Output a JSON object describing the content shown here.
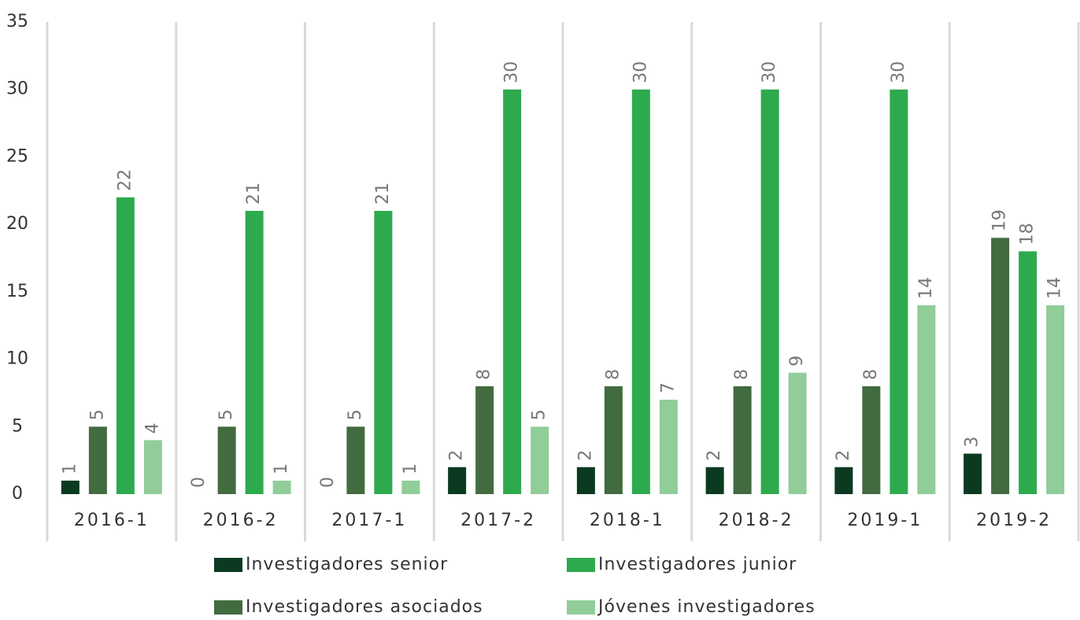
{
  "chart_data": {
    "type": "bar",
    "categories": [
      "2016-1",
      "2016-2",
      "2017-1",
      "2017-2",
      "2018-1",
      "2018-2",
      "2019-1",
      "2019-2"
    ],
    "series": [
      {
        "name": "Investigadores senior",
        "color": "#0b3a20",
        "values": [
          1,
          0,
          0,
          2,
          2,
          2,
          2,
          3
        ]
      },
      {
        "name": "Investigadores asociados",
        "color": "#426b3f",
        "values": [
          5,
          5,
          5,
          8,
          8,
          8,
          8,
          19
        ]
      },
      {
        "name": "Investigadores junior",
        "color": "#2eaa4e",
        "values": [
          22,
          21,
          21,
          30,
          30,
          30,
          30,
          18
        ]
      },
      {
        "name": "Jóvenes investigadores",
        "color": "#90cd99",
        "values": [
          4,
          1,
          1,
          5,
          7,
          9,
          14,
          14
        ]
      }
    ],
    "ylim": [
      0,
      35
    ],
    "yticks": [
      0,
      5,
      10,
      15,
      20,
      25,
      30,
      35
    ],
    "grid": false,
    "legend": "bottom"
  }
}
